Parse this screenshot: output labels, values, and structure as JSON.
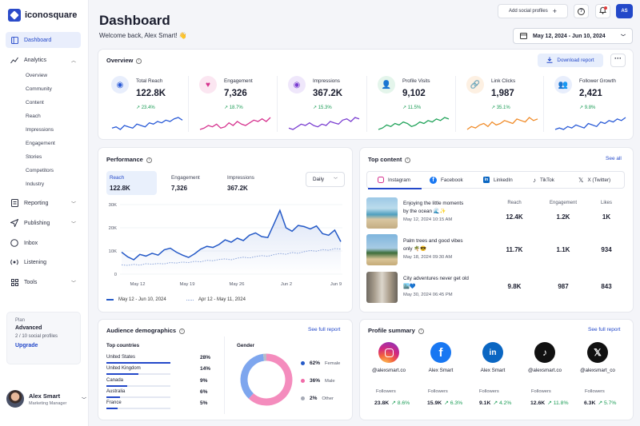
{
  "app": {
    "brand": "iconosquare"
  },
  "sidebar": {
    "dashboard": "Dashboard",
    "analytics": "Analytics",
    "analytics_sub": [
      "Overview",
      "Community",
      "Content",
      "Reach",
      "Impressions",
      "Engagement",
      "Stories",
      "Competitors",
      "Industry"
    ],
    "reporting": "Reporting",
    "publishing": "Publishing",
    "inbox": "Inbox",
    "listening": "Listening",
    "tools": "Tools"
  },
  "plan": {
    "label": "Plan",
    "name": "Advanced",
    "usage": "2 / 10 social profiles",
    "upgrade": "Upgrade"
  },
  "user": {
    "name": "Alex Smart",
    "role": "Marketing Manager",
    "initials": "AS"
  },
  "header": {
    "title": "Dashboard",
    "welcome": "Welcome back, Alex Smart! 👋",
    "add_profiles": "Add social profiles",
    "date_range": "May 12, 2024 - Jun 10, 2024"
  },
  "overview": {
    "title": "Overview",
    "download": "Download report",
    "kpis": [
      {
        "label": "Total Reach",
        "value": "122.8K",
        "change": "23.4%",
        "color": "#2a5bd7"
      },
      {
        "label": "Engagement",
        "value": "7,326",
        "change": "18.7%",
        "color": "#d6338f"
      },
      {
        "label": "Impressions",
        "value": "367.2K",
        "change": "15.3%",
        "color": "#7b3fd1"
      },
      {
        "label": "Profile Visits",
        "value": "9,102",
        "change": "11.5%",
        "color": "#21a35a"
      },
      {
        "label": "Link Clicks",
        "value": "1,987",
        "change": "35.1%",
        "color": "#f08c2a"
      },
      {
        "label": "Follower Growth",
        "value": "2,421",
        "change": "9.8%",
        "color": "#2a5bd7"
      }
    ]
  },
  "performance": {
    "title": "Performance",
    "tabs": [
      {
        "label": "Reach",
        "value": "122.8K"
      },
      {
        "label": "Engagement",
        "value": "7,326"
      },
      {
        "label": "Impressions",
        "value": "367.2K"
      }
    ],
    "interval": "Daily",
    "legend_current": "May 12 - Jun 10, 2024",
    "legend_previous": "Apr 12 - May 11, 2024",
    "chart_data": {
      "type": "line",
      "x_ticks": [
        "May 12",
        "May 19",
        "May 26",
        "Jun 2",
        "Jun 9"
      ],
      "y_ticks": [
        "30K",
        "20K",
        "10K",
        "0"
      ],
      "ylim": [
        0,
        30000
      ],
      "series": [
        {
          "name": "May 12 - Jun 10, 2024",
          "style": "solid",
          "color": "#2459c7",
          "values": [
            9500,
            7500,
            6200,
            8500,
            7800,
            9000,
            8200,
            10500,
            11200,
            9500,
            8200,
            7200,
            8800,
            10800,
            12000,
            11500,
            12800,
            14800,
            13800,
            15500,
            14500,
            16800,
            17800,
            16200,
            15800,
            21500,
            27500,
            20000,
            18500,
            21000,
            20500,
            19500,
            20800,
            17500,
            16800,
            19000,
            14000
          ]
        },
        {
          "name": "Apr 12 - May 11, 2024",
          "style": "dotted",
          "color": "#8aa3d9",
          "values": [
            4000,
            3800,
            4200,
            3900,
            4500,
            4300,
            4600,
            4400,
            5000,
            4800,
            5200,
            5000,
            5500,
            5300,
            6000,
            5800,
            6300,
            6600,
            6200,
            6900,
            7300,
            7000,
            7600,
            8000,
            7700,
            8400,
            8900,
            8600,
            9300,
            9000,
            9700,
            10200,
            9900,
            10600,
            10300,
            11000,
            10800
          ]
        }
      ]
    }
  },
  "top_content": {
    "title": "Top content",
    "see_all": "See all",
    "tabs": [
      "Instagram",
      "Facebook",
      "LinkedIn",
      "TikTok",
      "X (Twitter)"
    ],
    "columns": [
      "Reach",
      "Engagement",
      "Likes"
    ],
    "posts": [
      {
        "text1": "Enjoying the little moments",
        "text2": "by the ocean 🌊✨",
        "date": "May 12, 2024 10:15 AM",
        "reach": "12.4K",
        "engagement": "1.2K",
        "likes": "1K"
      },
      {
        "text1": "Palm trees and good vibes",
        "text2": "only 🌴😎",
        "date": "May 18, 2024 09:30 AM",
        "reach": "11.7K",
        "engagement": "1.1K",
        "likes": "934"
      },
      {
        "text1": "City adventures never get old",
        "text2": "🏙️💙",
        "date": "May 30, 2024 06:45 PM",
        "reach": "9.8K",
        "engagement": "987",
        "likes": "843"
      }
    ]
  },
  "audience": {
    "title": "Audience demographics",
    "see_full": "See full report",
    "countries_title": "Top countries",
    "countries": [
      {
        "name": "United States",
        "pct": "28%",
        "share": 0.28
      },
      {
        "name": "United Kingdom",
        "pct": "14%",
        "share": 0.14
      },
      {
        "name": "Canada",
        "pct": "9%",
        "share": 0.09
      },
      {
        "name": "Australia",
        "pct": "6%",
        "share": 0.06
      },
      {
        "name": "France",
        "pct": "5%",
        "share": 0.05
      }
    ],
    "gender_title": "Gender",
    "gender": [
      {
        "pct": "62%",
        "label": "Female",
        "color": "#f48cbd"
      },
      {
        "pct": "36%",
        "label": "Male",
        "color": "#7ea6ee"
      },
      {
        "pct": "2%",
        "label": "Other",
        "color": "#b8bcc8"
      }
    ],
    "gender_chart": {
      "type": "pie",
      "values": [
        62,
        36,
        2
      ],
      "labels": [
        "Female",
        "Male",
        "Other"
      ]
    }
  },
  "profile_summary": {
    "title": "Profile summary",
    "see_full": "See full report",
    "followers_label": "Followers",
    "profiles": [
      {
        "handle": "@alexsmart.co",
        "followers": "23.8K",
        "change": "8.6%",
        "network": "instagram"
      },
      {
        "handle": "Alex Smart",
        "followers": "15.9K",
        "change": "6.3%",
        "network": "facebook"
      },
      {
        "handle": "Alex Smart",
        "followers": "9.1K",
        "change": "4.2%",
        "network": "linkedin"
      },
      {
        "handle": "@alexsmart.co",
        "followers": "12.6K",
        "change": "11.8%",
        "network": "tiktok"
      },
      {
        "handle": "@alexsmart_co",
        "followers": "6.3K",
        "change": "5.7%",
        "network": "x"
      }
    ]
  }
}
